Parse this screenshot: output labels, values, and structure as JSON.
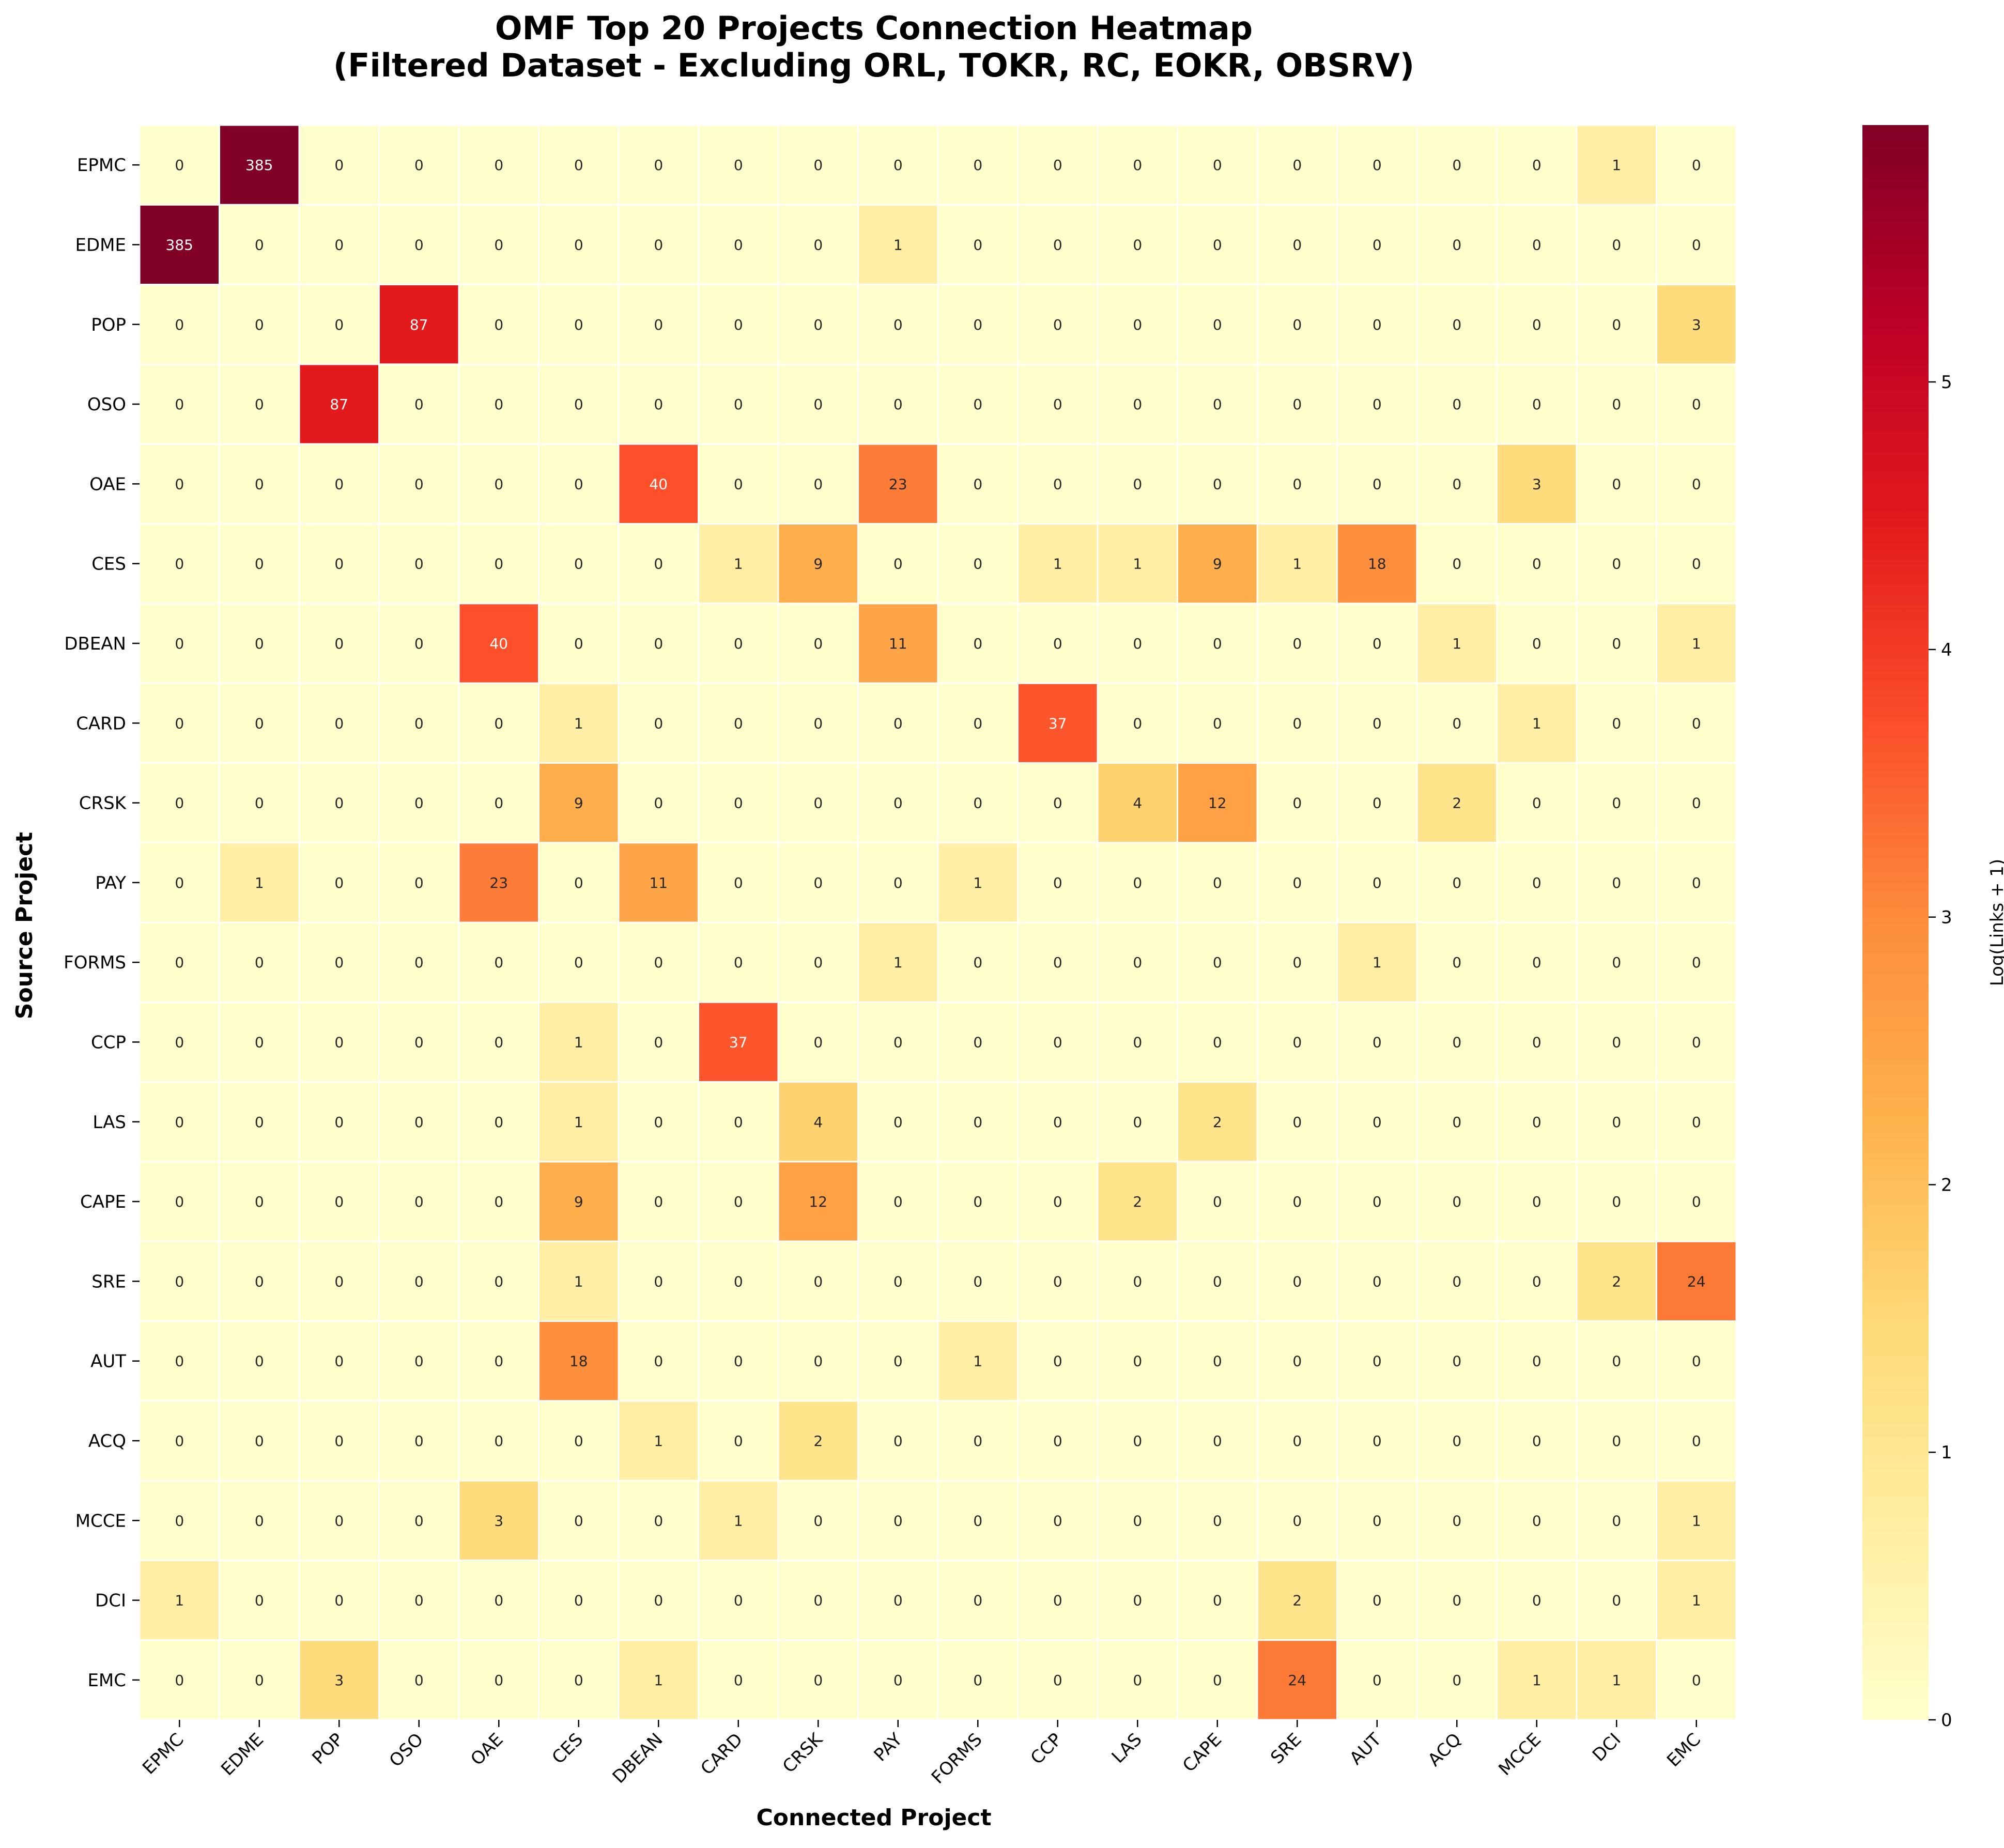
{
  "chart_data": {
    "type": "heatmap",
    "title": "OMF Top 20 Projects Connection Heatmap",
    "subtitle": "(Filtered Dataset - Excluding ORL, TOKR, RC, EOKR, OBSRV)",
    "xlabel": "Connected Project",
    "ylabel": "Source Project",
    "colorbar_label": "Log(Links + 1)",
    "colorbar_ticks": [
      0,
      1,
      2,
      3,
      4,
      5
    ],
    "colorbar_range": [
      0,
      5.96
    ],
    "colormap": [
      "#ffffcc",
      "#ffeda0",
      "#fed976",
      "#feb24c",
      "#fd8d3c",
      "#fc4e2a",
      "#e31a1c",
      "#bd0026",
      "#800026"
    ],
    "x_categories": [
      "EPMC",
      "EDME",
      "POP",
      "OSO",
      "OAE",
      "CES",
      "DBEAN",
      "CARD",
      "CRSK",
      "PAY",
      "FORMS",
      "CCP",
      "LAS",
      "CAPE",
      "SRE",
      "AUT",
      "ACQ",
      "MCCE",
      "DCI",
      "EMC"
    ],
    "y_categories": [
      "EPMC",
      "EDME",
      "POP",
      "OSO",
      "OAE",
      "CES",
      "DBEAN",
      "CARD",
      "CRSK",
      "PAY",
      "FORMS",
      "CCP",
      "LAS",
      "CAPE",
      "SRE",
      "AUT",
      "ACQ",
      "MCCE",
      "DCI",
      "EMC"
    ],
    "values": [
      [
        0,
        385,
        0,
        0,
        0,
        0,
        0,
        0,
        0,
        0,
        0,
        0,
        0,
        0,
        0,
        0,
        0,
        0,
        1,
        0
      ],
      [
        385,
        0,
        0,
        0,
        0,
        0,
        0,
        0,
        0,
        1,
        0,
        0,
        0,
        0,
        0,
        0,
        0,
        0,
        0,
        0
      ],
      [
        0,
        0,
        0,
        87,
        0,
        0,
        0,
        0,
        0,
        0,
        0,
        0,
        0,
        0,
        0,
        0,
        0,
        0,
        0,
        3
      ],
      [
        0,
        0,
        87,
        0,
        0,
        0,
        0,
        0,
        0,
        0,
        0,
        0,
        0,
        0,
        0,
        0,
        0,
        0,
        0,
        0
      ],
      [
        0,
        0,
        0,
        0,
        0,
        0,
        40,
        0,
        0,
        23,
        0,
        0,
        0,
        0,
        0,
        0,
        0,
        3,
        0,
        0
      ],
      [
        0,
        0,
        0,
        0,
        0,
        0,
        0,
        1,
        9,
        0,
        0,
        1,
        1,
        9,
        1,
        18,
        0,
        0,
        0,
        0
      ],
      [
        0,
        0,
        0,
        0,
        40,
        0,
        0,
        0,
        0,
        11,
        0,
        0,
        0,
        0,
        0,
        0,
        1,
        0,
        0,
        1
      ],
      [
        0,
        0,
        0,
        0,
        0,
        1,
        0,
        0,
        0,
        0,
        0,
        37,
        0,
        0,
        0,
        0,
        0,
        1,
        0,
        0
      ],
      [
        0,
        0,
        0,
        0,
        0,
        9,
        0,
        0,
        0,
        0,
        0,
        0,
        4,
        12,
        0,
        0,
        2,
        0,
        0,
        0
      ],
      [
        0,
        1,
        0,
        0,
        23,
        0,
        11,
        0,
        0,
        0,
        1,
        0,
        0,
        0,
        0,
        0,
        0,
        0,
        0,
        0
      ],
      [
        0,
        0,
        0,
        0,
        0,
        0,
        0,
        0,
        0,
        1,
        0,
        0,
        0,
        0,
        0,
        1,
        0,
        0,
        0,
        0
      ],
      [
        0,
        0,
        0,
        0,
        0,
        1,
        0,
        37,
        0,
        0,
        0,
        0,
        0,
        0,
        0,
        0,
        0,
        0,
        0,
        0
      ],
      [
        0,
        0,
        0,
        0,
        0,
        1,
        0,
        0,
        4,
        0,
        0,
        0,
        0,
        2,
        0,
        0,
        0,
        0,
        0,
        0
      ],
      [
        0,
        0,
        0,
        0,
        0,
        9,
        0,
        0,
        12,
        0,
        0,
        0,
        2,
        0,
        0,
        0,
        0,
        0,
        0,
        0
      ],
      [
        0,
        0,
        0,
        0,
        0,
        1,
        0,
        0,
        0,
        0,
        0,
        0,
        0,
        0,
        0,
        0,
        0,
        0,
        2,
        24
      ],
      [
        0,
        0,
        0,
        0,
        0,
        18,
        0,
        0,
        0,
        0,
        1,
        0,
        0,
        0,
        0,
        0,
        0,
        0,
        0,
        0
      ],
      [
        0,
        0,
        0,
        0,
        0,
        0,
        1,
        0,
        2,
        0,
        0,
        0,
        0,
        0,
        0,
        0,
        0,
        0,
        0,
        0
      ],
      [
        0,
        0,
        0,
        0,
        3,
        0,
        0,
        1,
        0,
        0,
        0,
        0,
        0,
        0,
        0,
        0,
        0,
        0,
        0,
        1
      ],
      [
        1,
        0,
        0,
        0,
        0,
        0,
        0,
        0,
        0,
        0,
        0,
        0,
        0,
        0,
        2,
        0,
        0,
        0,
        0,
        1
      ],
      [
        0,
        0,
        3,
        0,
        0,
        0,
        1,
        0,
        0,
        0,
        0,
        0,
        0,
        0,
        24,
        0,
        0,
        1,
        1,
        0
      ]
    ]
  }
}
